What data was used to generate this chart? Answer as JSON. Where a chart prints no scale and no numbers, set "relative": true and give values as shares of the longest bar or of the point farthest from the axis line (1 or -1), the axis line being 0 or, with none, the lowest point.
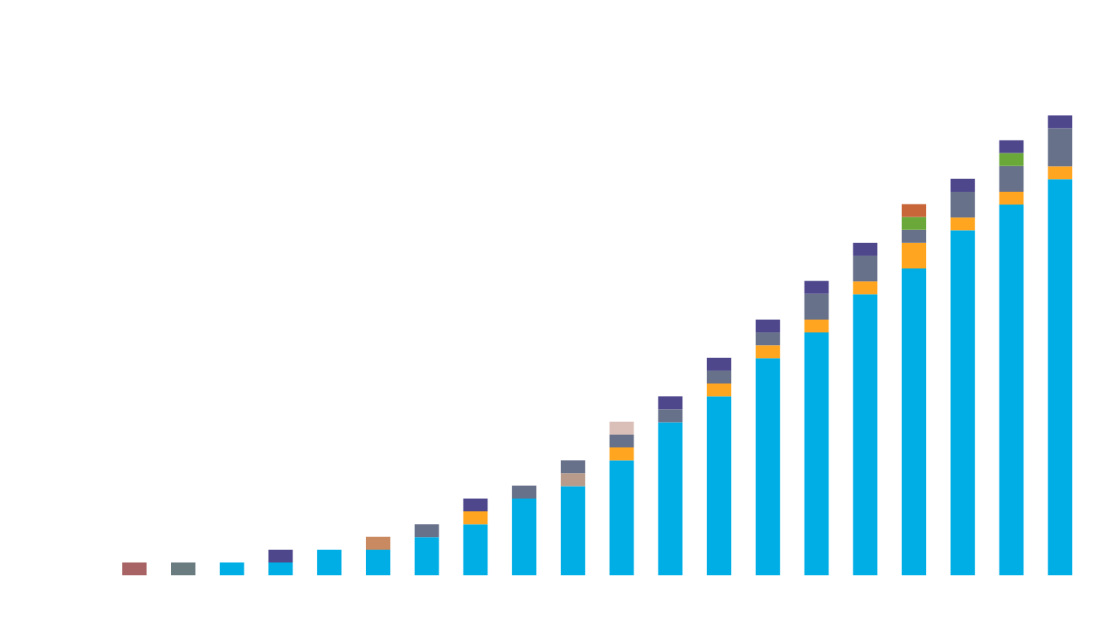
{
  "chart_data": {
    "type": "bar",
    "stacked": true,
    "relative": true,
    "categories": [
      null,
      null,
      null,
      null,
      null,
      null,
      null,
      null,
      null,
      null,
      null,
      null,
      null,
      null,
      null,
      null,
      null,
      null,
      null,
      null
    ],
    "series": [
      {
        "color": "#00aee6",
        "colors": [
          "#a86464",
          "#6a7c80",
          "#00aee6",
          "#00aee6",
          "#00aee6",
          "#00aee6",
          "#00aee6",
          "#00aee6",
          "#00aee6",
          "#00aee6",
          "#00aee6",
          "#00aee6",
          "#00aee6",
          "#00aee6",
          "#00aee6",
          "#00aee6",
          "#00aee6",
          "#00aee6",
          "#00aee6",
          "#00aee6"
        ],
        "values": [
          0.028,
          0.028,
          0.028,
          0.028,
          0.056,
          0.056,
          0.083,
          0.111,
          0.167,
          0.194,
          0.25,
          0.333,
          0.389,
          0.472,
          0.528,
          0.611,
          0.667,
          0.75,
          0.806,
          0.861
        ]
      },
      {
        "color": "#ffa520",
        "colors": [
          "#ffa520",
          "#ffa520",
          "#ffa520",
          "#ffa520",
          "#ffa520",
          "#c98a62",
          "#ffa520",
          "#ffa520",
          "#ffa520",
          "#b89b8a",
          "#ffa520",
          "#ffa520",
          "#ffa520",
          "#ffa520",
          "#ffa520",
          "#ffa520",
          "#ffa520",
          "#ffa520",
          "#ffa520",
          "#ffa520"
        ],
        "values": [
          0,
          0,
          0,
          0,
          0,
          0.028,
          0,
          0.028,
          0,
          0.028,
          0.028,
          0,
          0.028,
          0.028,
          0.028,
          0.028,
          0.056,
          0.028,
          0.028,
          0.028
        ]
      },
      {
        "color": "#68718a",
        "values": [
          0,
          0,
          0,
          0,
          0,
          0,
          0.028,
          0,
          0.028,
          0.028,
          0.028,
          0.028,
          0.028,
          0.028,
          0.056,
          0.056,
          0.028,
          0.056,
          0.056,
          0.083
        ]
      },
      {
        "color": "#6aa83a",
        "values": [
          0,
          0,
          0,
          0,
          0,
          0,
          0,
          0,
          0,
          0,
          0,
          0,
          0,
          0,
          0,
          0,
          0.028,
          0,
          0.028,
          0
        ]
      },
      {
        "color": "#4e478c",
        "colors": [
          "#4e478c",
          "#4e478c",
          "#4e478c",
          "#4e478c",
          "#4e478c",
          "#4e478c",
          "#4e478c",
          "#4e478c",
          "#4e478c",
          "#4e478c",
          "#d9bfb8",
          "#4e478c",
          "#4e478c",
          "#4e478c",
          "#4e478c",
          "#4e478c",
          "#c8663a",
          "#4e478c",
          "#4e478c",
          "#4e478c"
        ],
        "values": [
          0,
          0,
          0,
          0.028,
          0,
          0,
          0,
          0.028,
          0,
          0,
          0.028,
          0.028,
          0.028,
          0.028,
          0.028,
          0.028,
          0.028,
          0.028,
          0.028,
          0.028
        ]
      }
    ]
  }
}
